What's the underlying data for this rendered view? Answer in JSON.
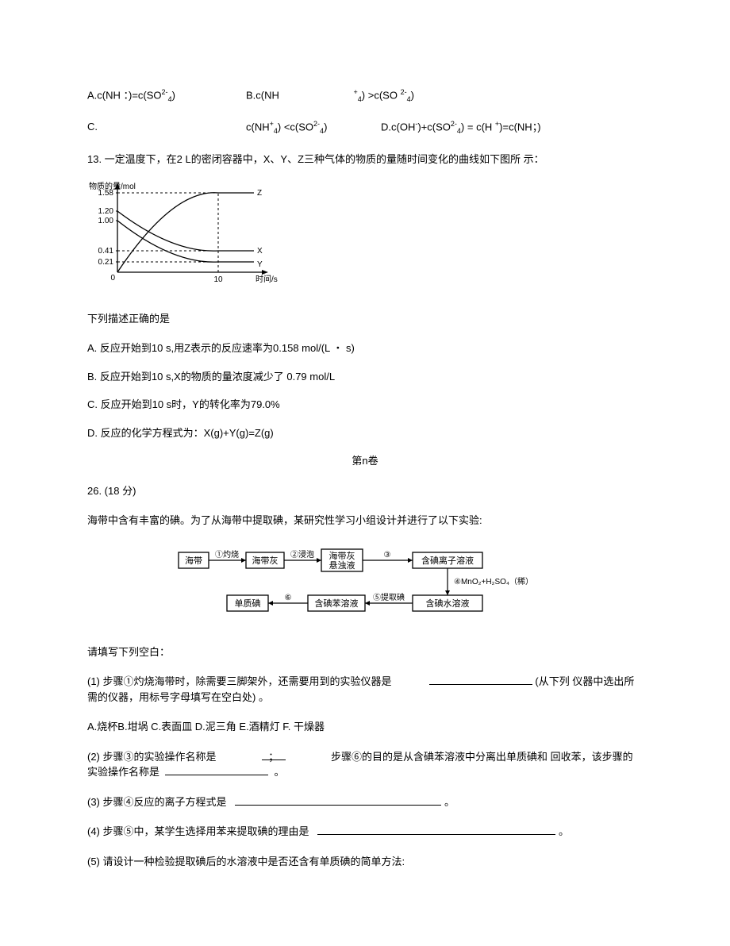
{
  "topOptions": {
    "A_pre": "A.c(NH ：)=c(SO",
    "A_sup": "2-",
    "A_sub": "4",
    "A_post": ")",
    "B_pre": "B.c(NH",
    "B_mid_sup": "+",
    "B_mid_sub": "4",
    "B_mid": ") >c(SO ",
    "B_sup2": "2-",
    "B_sub2": "4",
    "B_post": ")",
    "C_label": "C.",
    "C_pre": "c(NH",
    "C_sup1": "+",
    "C_sub1": "4",
    "C_mid1": ") <c(SO",
    "C_sup2": "2-",
    "C_sub2": "4",
    "C_post1": ")",
    "D_pre": "D.c(OH",
    "D_sup1": "-",
    "D_mid1": ")+c(SO",
    "D_sup2": "2-",
    "D_sub2": "4",
    "D_mid2": ") = c(H ",
    "D_sup3": "+",
    "D_mid3": ")=c(NH；)"
  },
  "q13": {
    "stem": "13. 一定温度下，在2 L的密闭容器中，X、Y、Z三种气体的物质的量随时间变化的曲线如下图所 示：",
    "prompt": "下列描述正确的是",
    "A": "A.   反应开始到10 s,用Z表示的反应速率为0.158 mol/(L  ・ s)",
    "B": "B.   反应开始到10 s,X的物质的量浓度减少了 0.79 mol/L",
    "C": "C.   反应开始到10 s时，Y的转化率为79.0%",
    "D": "D.   反应的化学方程式为：X(g)+Y(g)=Z(g)"
  },
  "chart": {
    "ylabel": "物质的量/mol",
    "xlabel": "时间/s",
    "xticks": [
      "0",
      "10"
    ],
    "yticks": [
      "0.21",
      "0.41",
      "1.00",
      "1.20",
      "1.58"
    ],
    "series": [
      "X",
      "Y",
      "Z"
    ],
    "x_origin": 38,
    "x_tick10": 165,
    "x_end": 210,
    "y_origin": 115,
    "y_021": 102,
    "y_041": 88,
    "y_100": 50,
    "y_120": 38,
    "y_158": 15,
    "line_color": "#000000",
    "dash": "3,3"
  },
  "sectionTitle": "第n卷",
  "q26": {
    "header": "26.   (18 分)",
    "intro": "海带中含有丰富的碘。为了从海带中提取碘，某研究性学习小组设计并进行了以下实验:",
    "fillPrompt": "请填写下列空白：",
    "p1a": "(1) 步骤①灼烧海带时，除需要三脚架外，还需要用到的实验仪器是",
    "p1b": "(从下列 仪器中选出所需的仪器，用标号字母填写在空白处)       。",
    "p1opts": "A.烧杯B.坩埚 C.表面皿 D.泥三角 E.酒精灯 F. 干燥器",
    "p2a": "(2) 步骤③的实验操作名称是",
    "p2sep": "；",
    "p2b": "步骤⑥的目的是从含碘苯溶液中分离出单质碘和 回收苯，该步骤的实验操作名称是",
    "p2end": "。",
    "p3": "(3) 步骤④反应的离子方程式是",
    "p3end": "。",
    "p4": "(4) 步骤⑤中，某学生选择用苯来提取碘的理由是",
    "p4end": "。",
    "p5": "(5)   请设计一种检验提取碘后的水溶液中是否还含有单质碘的简单方法:"
  },
  "flow": {
    "boxes": {
      "b1": "海带",
      "b2": "海带灰",
      "b3a": "海带灰",
      "b3b": "悬浊液",
      "b4": "含碘离子溶液",
      "b5": "含碘水溶液",
      "b6": "含碘苯溶液",
      "b7": "单质碘"
    },
    "labels": {
      "l1": "①灼烧",
      "l2": "②浸泡",
      "l3": "③",
      "l4a": "④MnO₂+H₂SO₄（稀）",
      "l5": "⑤提取碘",
      "l6": "⑥"
    },
    "box_stroke": "#000000",
    "box_fill": "#ffffff",
    "font_size": 11
  }
}
